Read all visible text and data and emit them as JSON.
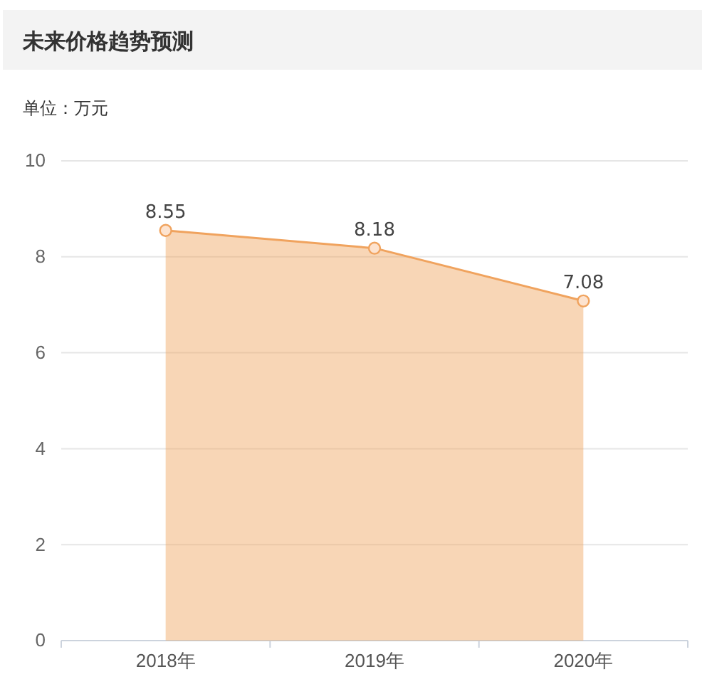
{
  "chart_data": {
    "type": "area",
    "title": "未来价格趋势预测",
    "subtitle": "单位：万元",
    "categories": [
      "2018年",
      "2019年",
      "2020年"
    ],
    "series": [
      {
        "color": "#f0a35e",
        "values": [
          8.55,
          8.18,
          7.08
        ]
      }
    ],
    "ylim": [
      0,
      10
    ],
    "yticks": [
      0,
      2,
      4,
      6,
      8,
      10
    ],
    "grid": "y",
    "marker": "circle",
    "data_labels": true
  }
}
